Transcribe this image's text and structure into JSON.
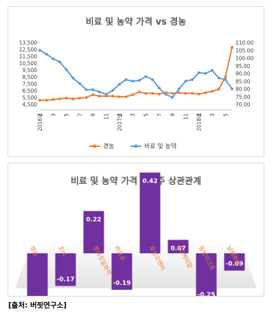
{
  "chart_data": [
    {
      "type": "line",
      "title": "비료 및 농약 가격 vs 경농",
      "x_tick_labels": [
        "1\n2016년",
        "3",
        "5",
        "7",
        "9",
        "11",
        "1\n2017년",
        "3",
        "5",
        "7",
        "9",
        "11",
        "1\n2018년",
        "3",
        "5"
      ],
      "series": [
        {
          "name": "경농",
          "axis": "left",
          "color": "#ed7d31",
          "values": [
            5100,
            5100,
            5200,
            5300,
            5400,
            5300,
            5400,
            5500,
            5900,
            5700,
            5700,
            5700,
            5600,
            5600,
            5900,
            6300,
            6100,
            6100,
            6000,
            6200,
            6100,
            6200,
            6100,
            6100,
            6000,
            6200,
            6400,
            6700,
            8500,
            12800
          ]
        },
        {
          "name": "비료 및 농약",
          "axis": "right",
          "color": "#5b9bd5",
          "values": [
            105.0,
            102.5,
            99.5,
            97.5,
            92.5,
            87.0,
            83.5,
            79.5,
            79.5,
            78.0,
            76.5,
            79.0,
            83.0,
            86.0,
            85.0,
            85.5,
            88.0,
            86.0,
            80.5,
            76.5,
            74.5,
            80.0,
            85.0,
            86.0,
            90.5,
            90.0,
            92.0,
            87.0,
            86.0,
            80.0
          ]
        }
      ],
      "y_left": {
        "min": 4500,
        "max": 13500,
        "ticks": [
          "4,500",
          "5,500",
          "6,500",
          "7,500",
          "8,500",
          "9,500",
          "10,500",
          "11,500",
          "12,500",
          "13,500"
        ]
      },
      "y_right": {
        "min": 70,
        "max": 110,
        "ticks": [
          "70.00",
          "75.00",
          "80.00",
          "85.00",
          "90.00",
          "95.00",
          "100.00",
          "105.00",
          "110.00"
        ]
      },
      "legend": [
        "경농",
        "비료 및 농약"
      ],
      "legend_position": "bottom",
      "grid": false
    },
    {
      "type": "bar",
      "title": "비료 및 농약 가격 관련주 상관관계",
      "categories": [
        "경농",
        "조비",
        "롯데정밀화학",
        "카프로",
        "효성오앤비",
        "KG케미칼",
        "동방아그로",
        "남해화학"
      ],
      "values": [
        -0.39,
        -0.17,
        0.22,
        -0.19,
        0.42,
        0.07,
        -0.25,
        -0.09
      ],
      "value_labels": [
        "-0.39",
        "-0.17",
        "0.22",
        "-0.19",
        "0.42",
        "0.07",
        "-0.25",
        "-0.09"
      ],
      "ylim": [
        -0.45,
        0.45
      ],
      "bar_color": "#7030a0",
      "category_label_color": "#ed7d31",
      "grid": false
    }
  ],
  "footer": {
    "source": "[출처: 버핏연구소]"
  }
}
